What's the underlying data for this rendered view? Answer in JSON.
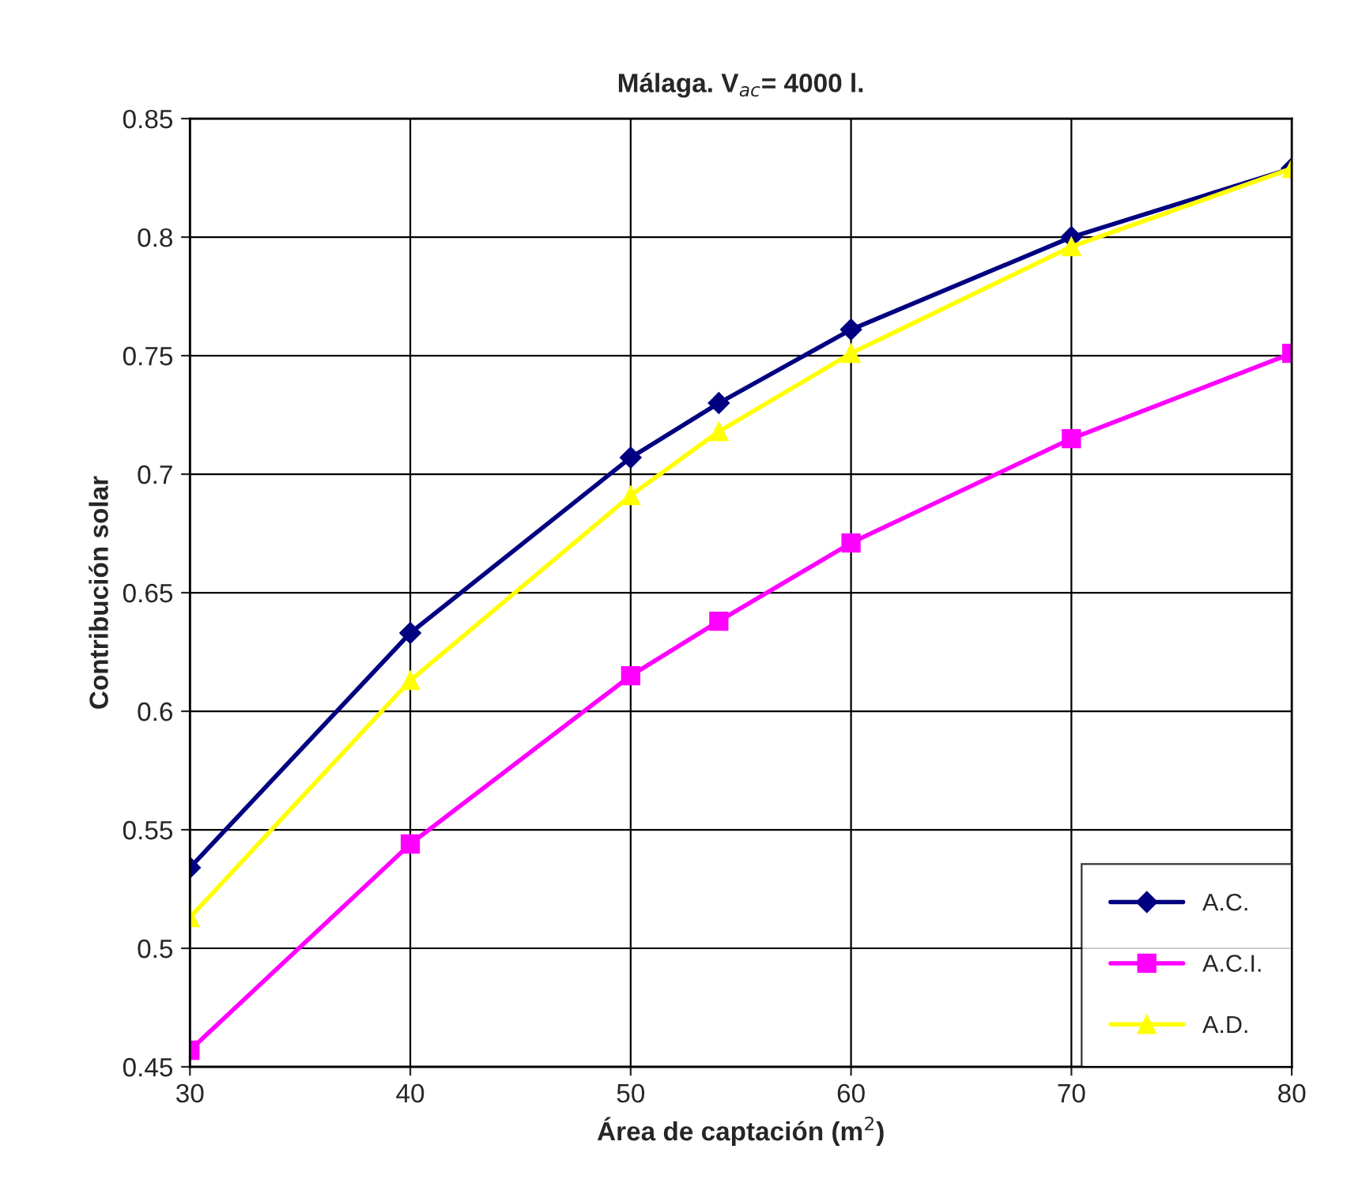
{
  "chart_data": {
    "type": "line",
    "title": "Málaga. V$_{ac}$= 4000 l.",
    "xlabel": "Área de captación (m$^{2}$)",
    "ylabel": "Contribución solar",
    "x": [
      30,
      40,
      50,
      54,
      60,
      70,
      80
    ],
    "series": [
      {
        "name": "A.C.",
        "color": "#000080",
        "marker": "diamond",
        "values": [
          0.534,
          0.633,
          0.707,
          0.73,
          0.761,
          0.8,
          0.829
        ]
      },
      {
        "name": "A.C.I.",
        "color": "#ff00ff",
        "marker": "square",
        "values": [
          0.457,
          0.544,
          0.615,
          0.638,
          0.671,
          0.715,
          0.751
        ]
      },
      {
        "name": "A.D.",
        "color": "#ffff00",
        "marker": "triangle",
        "values": [
          0.513,
          0.613,
          0.691,
          0.718,
          0.751,
          0.796,
          0.829
        ]
      }
    ],
    "xlim": [
      30,
      80
    ],
    "xticks": [
      30,
      40,
      50,
      60,
      70,
      80
    ],
    "ylim": [
      0.45,
      0.85
    ],
    "yticks": [
      0.45,
      0.5,
      0.55,
      0.6,
      0.65,
      0.7,
      0.75,
      0.8,
      0.85
    ],
    "grid": true,
    "legend": "bottom right",
    "line_style": "solid"
  }
}
